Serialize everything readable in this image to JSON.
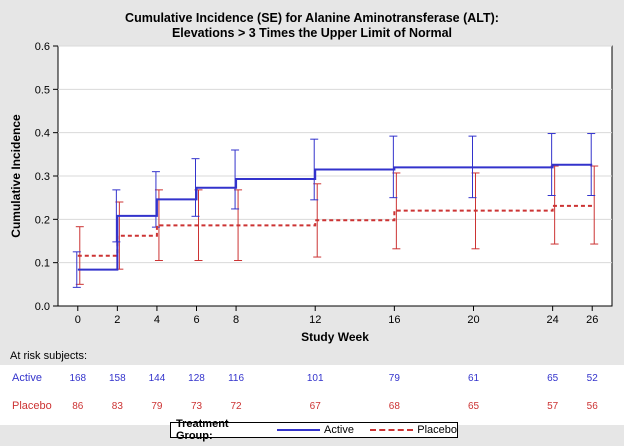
{
  "colors": {
    "active": "#3333cc",
    "placebo": "#cc3333",
    "grid": "#d9d9d9",
    "axis": "#000000"
  },
  "chart_data": {
    "type": "line",
    "title": "Cumulative Incidence (SE) for Alanine Aminotransferase (ALT):",
    "subtitle": "Elevations > 3 Times the Upper Limit of Normal",
    "xlabel": "Study Week",
    "ylabel": "Cumulative Incidence",
    "xlim": [
      -1,
      27
    ],
    "ylim": [
      0,
      0.6
    ],
    "x_ticks": [
      0,
      2,
      4,
      6,
      8,
      12,
      16,
      20,
      24,
      26
    ],
    "y_ticks": [
      0.0,
      0.1,
      0.2,
      0.3,
      0.4,
      0.5,
      0.6
    ],
    "y_tick_labels": [
      "0.0",
      "0.1",
      "0.2",
      "0.3",
      "0.4",
      "0.5",
      "0.6"
    ],
    "grid": true,
    "step": true,
    "series": [
      {
        "name": "Active",
        "x": [
          0,
          2,
          4,
          6,
          8,
          12,
          16,
          24,
          26
        ],
        "y": [
          0.084,
          0.208,
          0.246,
          0.273,
          0.293,
          0.315,
          0.32,
          0.326,
          0.326
        ],
        "err_lo": [
          0.043,
          0.148,
          0.182,
          0.207,
          0.224,
          0.245,
          0.25,
          0.255,
          0.255
        ],
        "err_hi": [
          0.125,
          0.268,
          0.31,
          0.34,
          0.36,
          0.385,
          0.392,
          0.398,
          0.398
        ]
      },
      {
        "name": "Placebo",
        "x": [
          0,
          2,
          4,
          8,
          12,
          16,
          24,
          26
        ],
        "y": [
          0.116,
          0.162,
          0.186,
          0.186,
          0.198,
          0.22,
          0.231,
          0.231
        ],
        "err_lo": [
          0.05,
          0.085,
          0.105,
          0.105,
          0.113,
          0.132,
          0.143,
          0.143
        ],
        "err_hi": [
          0.183,
          0.24,
          0.268,
          0.268,
          0.282,
          0.307,
          0.323,
          0.323
        ]
      }
    ],
    "errorbar_x": {
      "Active": [
        0,
        2,
        4,
        6,
        8,
        12,
        16,
        20,
        24,
        26
      ],
      "Placebo": [
        0,
        2,
        4,
        6,
        8,
        12,
        16,
        20,
        24,
        26
      ]
    },
    "errorbar_y": {
      "Active": {
        "lo": [
          0.043,
          0.148,
          0.182,
          0.207,
          0.224,
          0.245,
          0.25,
          0.25,
          0.255,
          0.255
        ],
        "hi": [
          0.125,
          0.268,
          0.31,
          0.34,
          0.36,
          0.385,
          0.392,
          0.392,
          0.398,
          0.398
        ]
      },
      "Placebo": {
        "lo": [
          0.05,
          0.085,
          0.105,
          0.105,
          0.105,
          0.113,
          0.132,
          0.132,
          0.143,
          0.143
        ],
        "hi": [
          0.183,
          0.24,
          0.268,
          0.268,
          0.268,
          0.282,
          0.307,
          0.307,
          0.323,
          0.323
        ]
      }
    }
  },
  "risk_table": {
    "header": "At risk subjects:",
    "weeks": [
      0,
      2,
      4,
      6,
      8,
      12,
      16,
      20,
      24,
      26
    ],
    "rows": [
      {
        "label": "Active",
        "values": [
          "168",
          "158",
          "144",
          "128",
          "116",
          "101",
          "79",
          "61",
          "65",
          "52"
        ]
      },
      {
        "label": "Placebo",
        "values": [
          "86",
          "83",
          "79",
          "73",
          "72",
          "67",
          "68",
          "65",
          "57",
          "56"
        ]
      }
    ]
  },
  "legend": {
    "title": "Treatment Group:",
    "items": [
      "Active",
      "Placebo"
    ]
  }
}
